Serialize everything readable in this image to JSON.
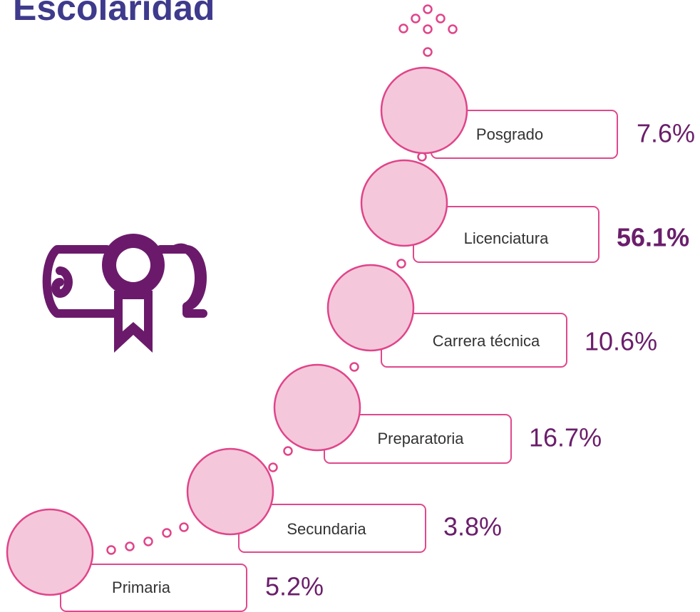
{
  "title": "Escolaridad",
  "steps": [
    {
      "label": "Primaria",
      "value": "5.2%"
    },
    {
      "label": "Secundaria",
      "value": "3.8%"
    },
    {
      "label": "Preparatoria",
      "value": "16.7%"
    },
    {
      "label": "Carrera técnica",
      "value": "10.6%"
    },
    {
      "label": "Licenciatura",
      "value": "56.1%"
    },
    {
      "label": "Posgrado",
      "value": "7.6%"
    }
  ]
}
